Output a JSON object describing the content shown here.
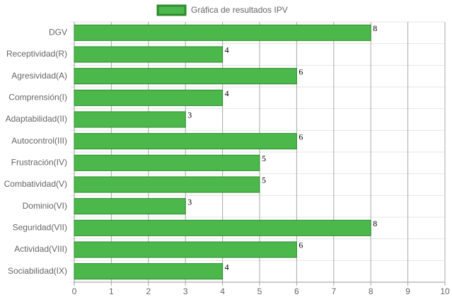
{
  "chart_data": {
    "type": "bar",
    "orientation": "horizontal",
    "categories": [
      "DGV",
      "Receptividad(R)",
      "Agresividad(A)",
      "Comprensión(I)",
      "Adaptabilidad(II)",
      "Autocontrol(III)",
      "Frustración(IV)",
      "Combatividad(V)",
      "Dominio(VI)",
      "Seguridad(VII)",
      "Actividad(VIII)",
      "Sociabilidad(IX)"
    ],
    "series": [
      {
        "name": "Gráfica de resultados IPV",
        "color": "#4cb84c",
        "border": "#2e8b2e",
        "values": [
          8,
          4,
          6,
          4,
          3,
          6,
          5,
          5,
          3,
          8,
          6,
          4
        ]
      }
    ],
    "xlim": [
      0,
      10
    ],
    "xticks": [
      0,
      1,
      2,
      3,
      4,
      5,
      6,
      7,
      8,
      9,
      10
    ],
    "grid": true,
    "legend": "top"
  }
}
